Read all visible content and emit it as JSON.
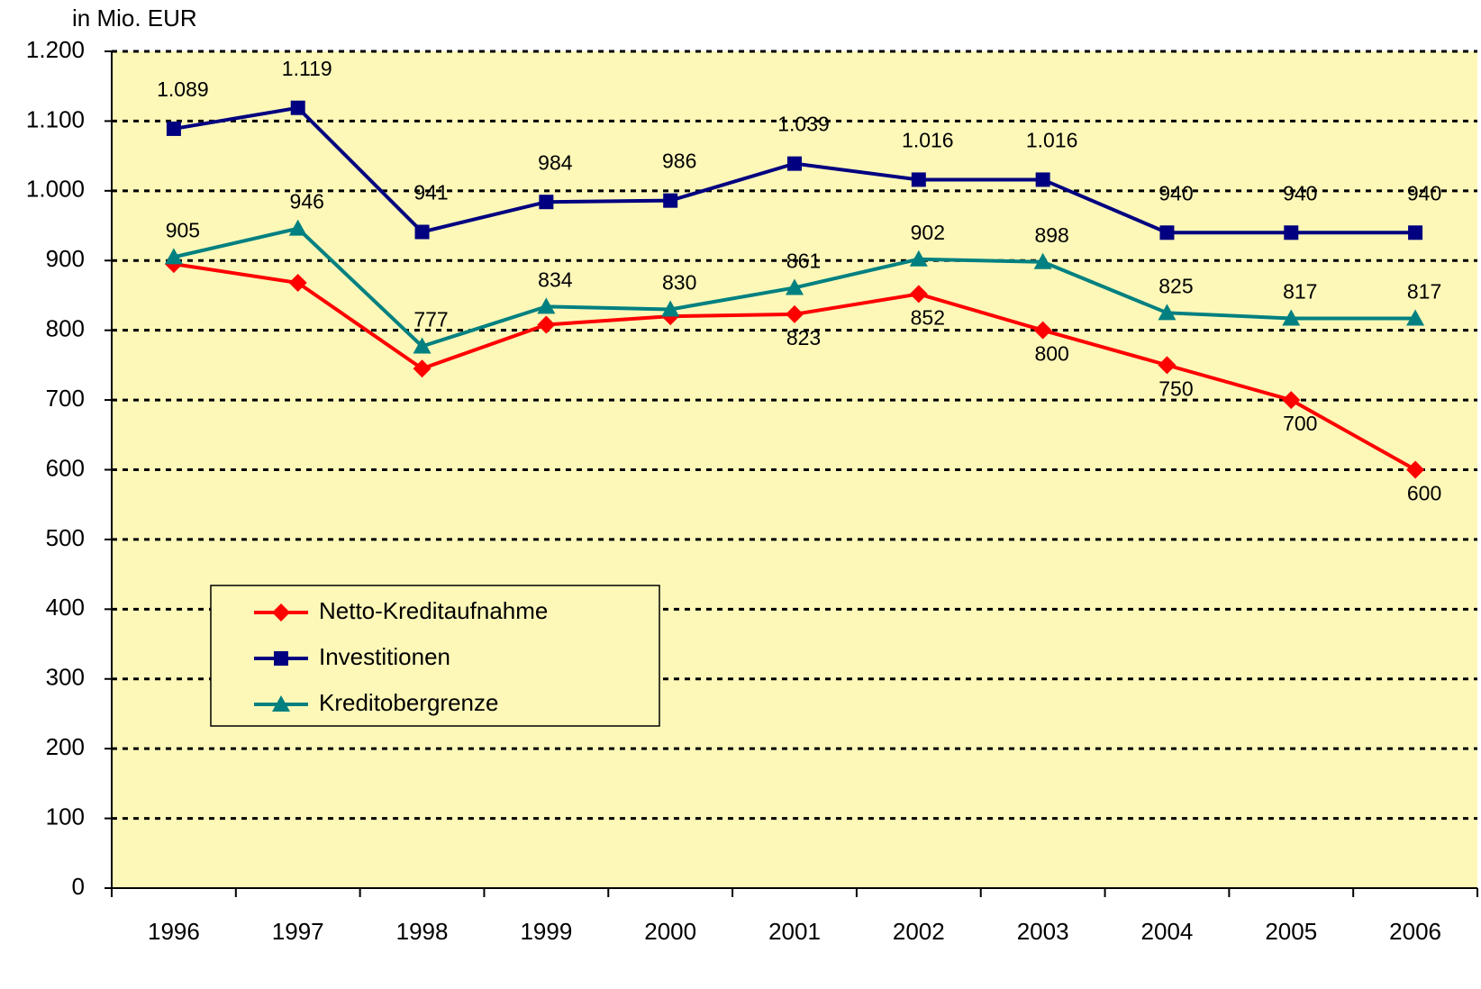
{
  "chart_data": {
    "type": "line",
    "title": "in Mio. EUR",
    "categories": [
      "1996",
      "1997",
      "1998",
      "1999",
      "2000",
      "2001",
      "2002",
      "2003",
      "2004",
      "2005",
      "2006"
    ],
    "series": [
      {
        "name": "Netto-Kreditaufnahme",
        "color": "#ff0000",
        "marker": "diamond",
        "values": [
          895,
          868,
          745,
          808,
          820,
          823,
          852,
          800,
          750,
          700,
          600
        ],
        "value_labels": [
          null,
          null,
          null,
          null,
          null,
          "823",
          "852",
          "800",
          "750",
          "700",
          "600"
        ]
      },
      {
        "name": "Investitionen",
        "color": "#000080",
        "marker": "square",
        "values": [
          1089,
          1119,
          941,
          984,
          986,
          1039,
          1016,
          1016,
          940,
          940,
          940
        ],
        "value_labels": [
          "1.089",
          "1.119",
          "941",
          "984",
          "986",
          "1.039",
          "1.016",
          "1.016",
          "940",
          "940",
          "940"
        ]
      },
      {
        "name": "Kreditobergrenze",
        "color": "#008080",
        "marker": "triangle",
        "values": [
          905,
          946,
          777,
          834,
          830,
          861,
          902,
          898,
          825,
          817,
          817
        ],
        "value_labels": [
          "905",
          "946",
          "777",
          "834",
          "830",
          "861",
          "902",
          "898",
          "825",
          "817",
          "817"
        ]
      }
    ],
    "ylim": [
      0,
      1200
    ],
    "yticks": [
      0,
      100,
      200,
      300,
      400,
      500,
      600,
      700,
      800,
      900,
      {
        "value": 1000,
        "label": "1.000"
      },
      {
        "value": 1100,
        "label": "1.100"
      },
      {
        "value": 1200,
        "label": "1.200"
      }
    ],
    "grid": true,
    "plot_background": "#fdf8b8"
  }
}
